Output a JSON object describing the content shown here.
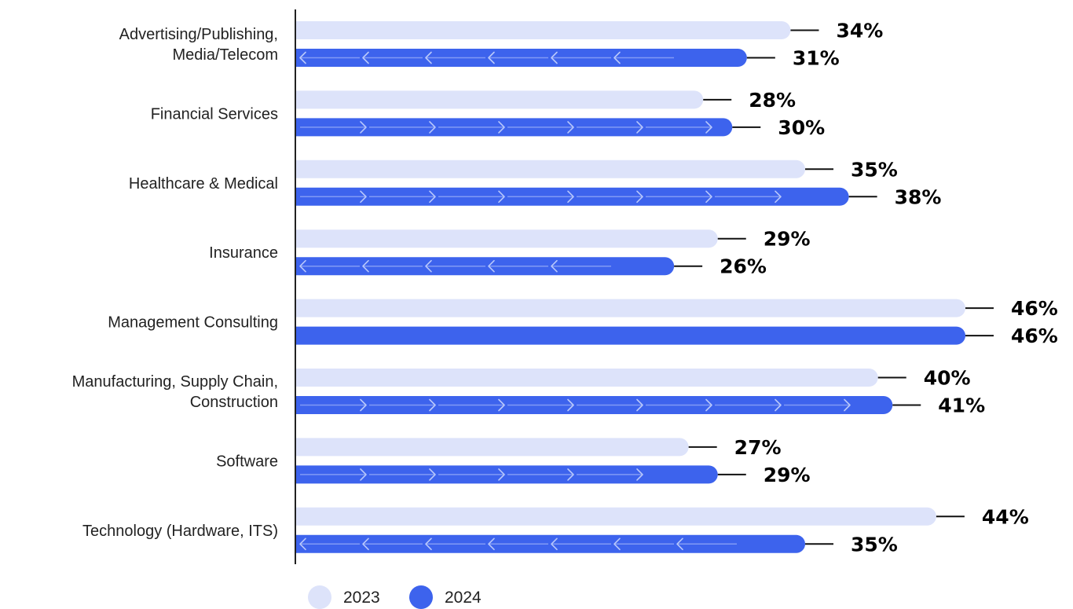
{
  "chart_data": {
    "type": "bar",
    "orientation": "horizontal",
    "categories": [
      [
        "Advertising/Publishing,",
        "Media/Telecom"
      ],
      [
        "Financial Services"
      ],
      [
        "Healthcare & Medical"
      ],
      [
        "Insurance"
      ],
      [
        "Management Consulting"
      ],
      [
        "Manufacturing, Supply Chain,",
        "Construction"
      ],
      [
        "Software"
      ],
      [
        "Technology (Hardware, ITS)"
      ]
    ],
    "series": [
      {
        "name": "2023",
        "values": [
          34,
          28,
          35,
          29,
          46,
          40,
          27,
          44
        ],
        "labels": [
          "34%",
          "28%",
          "35%",
          "29%",
          "46%",
          "40%",
          "27%",
          "44%"
        ]
      },
      {
        "name": "2024",
        "values": [
          31,
          30,
          38,
          26,
          46,
          41,
          29,
          35
        ],
        "labels": [
          "31%",
          "30%",
          "38%",
          "26%",
          "46%",
          "41%",
          "29%",
          "35%"
        ],
        "trend": [
          "down",
          "up",
          "up",
          "down",
          "flat",
          "up",
          "up",
          "down"
        ]
      }
    ],
    "xlim": [
      0,
      46
    ],
    "grid": false,
    "legend": "bottom",
    "title": "",
    "xlabel": "",
    "ylabel": ""
  },
  "colors": {
    "series_2023": "#dde3fa",
    "series_2024": "#3d63ed",
    "arrow": "#b9c8fb",
    "axis": "#222222",
    "leader": "#111111",
    "text": "#222222",
    "value_text": "#000000"
  },
  "icons": {
    "up": "arrow-right-icon",
    "down": "arrow-left-icon"
  }
}
